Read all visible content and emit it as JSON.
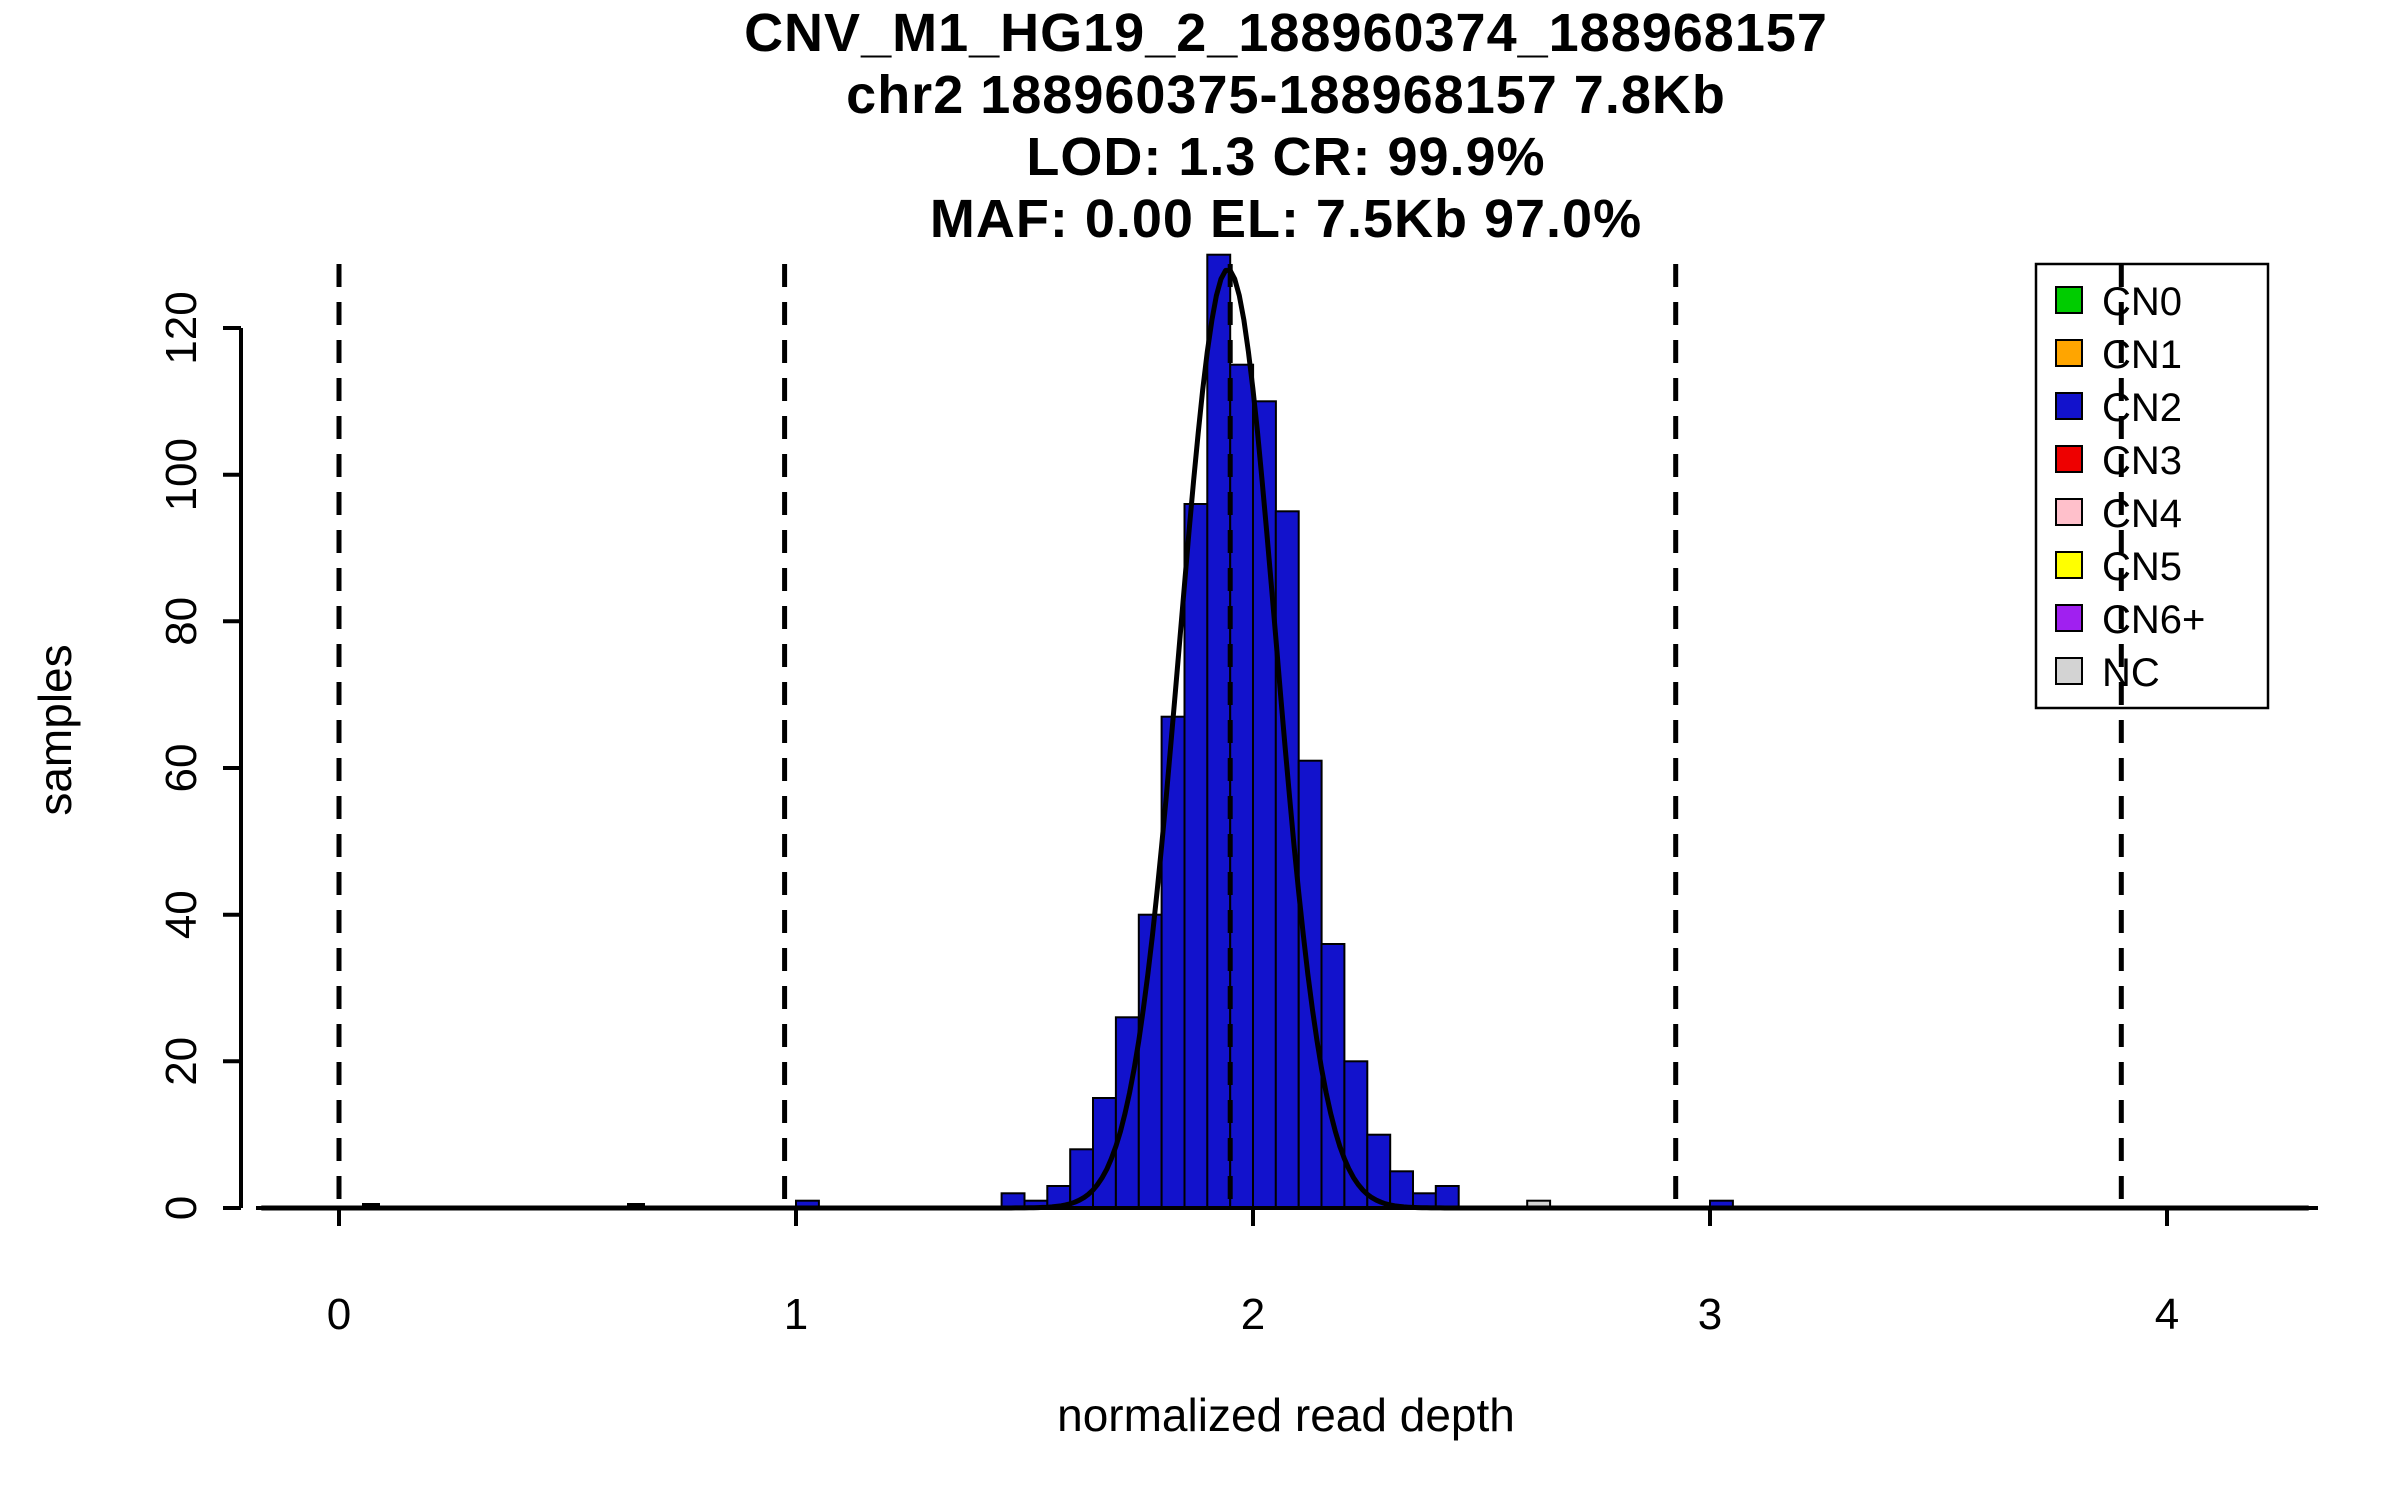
{
  "title_lines": [
    "CNV_M1_HG19_2_188960374_188968157",
    "chr2 188960375-188968157 7.8Kb",
    "LOD: 1.3 CR: 99.9%",
    "MAF: 0.00 EL: 7.5Kb 97.0%"
  ],
  "chart_data": {
    "type": "bar",
    "title": "CNV_M1_HG19_2_188960374_188968157 chr2 188960375-188968157 7.8Kb LOD: 1.3 CR: 99.9% MAF: 0.00 EL: 7.5Kb 97.0%",
    "xlabel": "normalized read depth",
    "ylabel": "samples",
    "x_ticks": [
      0,
      1,
      2,
      3,
      4
    ],
    "y_ticks": [
      0,
      20,
      40,
      60,
      80,
      100,
      120
    ],
    "xlim": [
      -0.18,
      4.35
    ],
    "ylim": [
      0,
      130
    ],
    "grid": false,
    "legend_position": "top-right",
    "bin_width": 0.05,
    "bars": [
      {
        "x": 1.0,
        "h": 1,
        "cn": "CN2"
      },
      {
        "x": 1.45,
        "h": 2,
        "cn": "CN2"
      },
      {
        "x": 1.5,
        "h": 1,
        "cn": "CN2"
      },
      {
        "x": 1.55,
        "h": 3,
        "cn": "CN2"
      },
      {
        "x": 1.6,
        "h": 8,
        "cn": "CN2"
      },
      {
        "x": 1.65,
        "h": 15,
        "cn": "CN2"
      },
      {
        "x": 1.7,
        "h": 26,
        "cn": "CN2"
      },
      {
        "x": 1.75,
        "h": 40,
        "cn": "CN2"
      },
      {
        "x": 1.8,
        "h": 67,
        "cn": "CN2"
      },
      {
        "x": 1.85,
        "h": 96,
        "cn": "CN2"
      },
      {
        "x": 1.9,
        "h": 130,
        "cn": "CN2"
      },
      {
        "x": 1.95,
        "h": 115,
        "cn": "CN2"
      },
      {
        "x": 2.0,
        "h": 110,
        "cn": "CN2"
      },
      {
        "x": 2.05,
        "h": 95,
        "cn": "CN2"
      },
      {
        "x": 2.1,
        "h": 61,
        "cn": "CN2"
      },
      {
        "x": 2.15,
        "h": 36,
        "cn": "CN2"
      },
      {
        "x": 2.2,
        "h": 20,
        "cn": "CN2"
      },
      {
        "x": 2.25,
        "h": 10,
        "cn": "CN2"
      },
      {
        "x": 2.3,
        "h": 5,
        "cn": "CN2"
      },
      {
        "x": 2.35,
        "h": 2,
        "cn": "CN2"
      },
      {
        "x": 2.4,
        "h": 3,
        "cn": "CN2"
      },
      {
        "x": 2.6,
        "h": 1,
        "cn": "NC"
      },
      {
        "x": 3.0,
        "h": 1,
        "cn": "CN2"
      }
    ],
    "baseline_marks": [
      0.07,
      0.65
    ],
    "fit_curve": {
      "mean": 1.945,
      "sd": 0.105,
      "amplitude": 128
    },
    "dashed_lines_x": [
      0,
      0.975,
      1.95,
      2.925,
      3.9
    ],
    "legend": [
      {
        "label": "CN0",
        "color": "#00cc00"
      },
      {
        "label": "CN1",
        "color": "#ffa500"
      },
      {
        "label": "CN2",
        "color": "#1212cc"
      },
      {
        "label": "CN3",
        "color": "#ee0000"
      },
      {
        "label": "CN4",
        "color": "#ffc0cb"
      },
      {
        "label": "CN5",
        "color": "#ffff00"
      },
      {
        "label": "CN6+",
        "color": "#a020f0"
      },
      {
        "label": "NC",
        "color": "#d3d3d3"
      }
    ]
  }
}
